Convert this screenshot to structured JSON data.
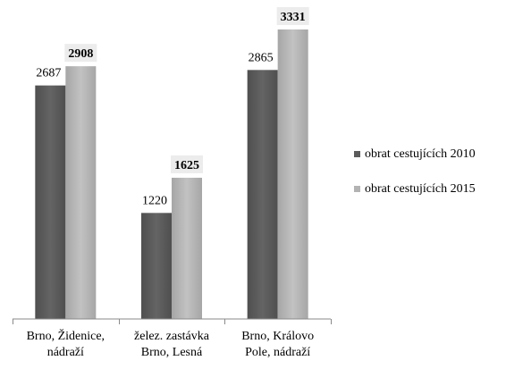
{
  "chart_data": {
    "type": "bar",
    "title": "",
    "xlabel": "",
    "ylabel": "",
    "ylim": [
      0,
      3331
    ],
    "grid": false,
    "legend_position": "right",
    "categories": [
      [
        "Brno, Židenice,",
        "nádraží"
      ],
      [
        "želez. zastávka",
        "Brno, Lesná"
      ],
      [
        "Brno, Královo",
        "Pole, nádraží"
      ]
    ],
    "series": [
      {
        "name": "obrat cestujících 2010",
        "values": [
          2687,
          1220,
          2865
        ],
        "color": "#5b5b5b",
        "label_style": "normal"
      },
      {
        "name": "obrat cestujících 2015",
        "values": [
          2908,
          1625,
          3331
        ],
        "color": "#b3b3b3",
        "label_style": "bold-boxed"
      }
    ]
  }
}
